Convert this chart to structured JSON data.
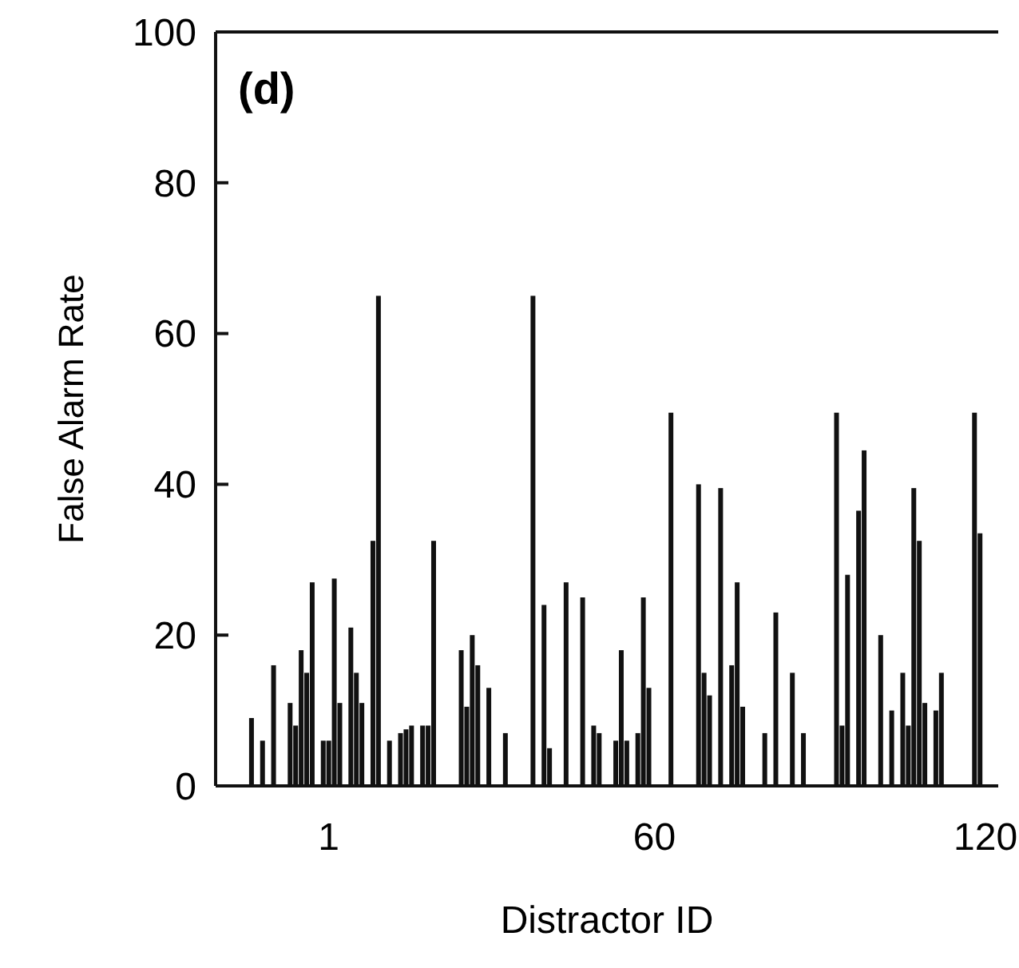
{
  "chart_data": {
    "type": "bar",
    "xlabel": "Distractor ID",
    "ylabel": "False Alarm Rate",
    "annotations": [
      "(d)"
    ],
    "x": [
      -13,
      -11,
      -9,
      -6,
      -5,
      -4,
      -3,
      -2,
      0,
      1,
      2,
      3,
      5,
      6,
      7,
      9,
      10,
      12,
      14,
      15,
      16,
      18,
      19,
      20,
      25,
      26,
      27,
      28,
      30,
      33,
      38,
      40,
      41,
      44,
      47,
      49,
      50,
      53,
      54,
      55,
      57,
      58,
      59,
      63,
      68,
      69,
      70,
      72,
      74,
      75,
      76,
      80,
      82,
      85,
      87,
      93,
      94,
      95,
      97,
      98,
      101,
      103,
      105,
      106,
      107,
      108,
      109,
      111,
      112,
      118,
      119
    ],
    "values": [
      9,
      6,
      16,
      11,
      8,
      18,
      15,
      27,
      6,
      6,
      27.5,
      11,
      21,
      15,
      11,
      32.5,
      65,
      6,
      7,
      7.5,
      8,
      8,
      8,
      32.5,
      18,
      10.5,
      20,
      16,
      13,
      7,
      65,
      24,
      5,
      27,
      25,
      8,
      7,
      6,
      18,
      6,
      7,
      25,
      13,
      49.5,
      40,
      15,
      12,
      39.5,
      16,
      27,
      10.5,
      7,
      23,
      15,
      7,
      49.5,
      8,
      28,
      36.5,
      44.5,
      20,
      10,
      15,
      8,
      39.5,
      32.5,
      11,
      10,
      15,
      49.5,
      33.5
    ],
    "color": "#111111",
    "xlim": [
      -19.5,
      122.3
    ],
    "xticks": [
      1,
      60,
      120
    ],
    "ylim": [
      0,
      100
    ],
    "yticks": [
      0,
      20,
      40,
      60,
      80,
      100
    ],
    "grid": false
  }
}
